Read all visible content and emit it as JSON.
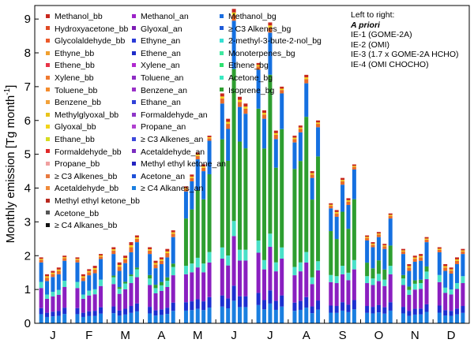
{
  "chart_data": {
    "type": "bar",
    "stacked": true,
    "ylabel": "Monthly emission [Tg month",
    "ylabel_sup": "-1",
    "ylabel_close": "]",
    "ylim": [
      0,
      9.4
    ],
    "yticks": [
      "0",
      "1",
      "2",
      "3",
      "4",
      "5",
      "6",
      "7",
      "8",
      "9"
    ],
    "months": [
      "J",
      "F",
      "M",
      "A",
      "M",
      "J",
      "J",
      "A",
      "S",
      "O",
      "N",
      "D"
    ],
    "bars_per_month": 5,
    "bar_order": [
      "A priori",
      "IE-1 (GOME-2A)",
      "IE-2 (OMI)",
      "IE-3 (1.7 x GOME-2A HCHO)",
      "IE-4 (OMI CHOCHO)"
    ],
    "notes": {
      "heading": "Left to right:",
      "lines": [
        "A priori",
        "IE-1 (GOME-2A)",
        "IE-2 (OMI)",
        "IE-3 (1.7 x GOME-2A HCHO)",
        "IE-4 (OMI CHOCHO)"
      ]
    },
    "stack_groups": [
      {
        "key": "C4 alkanes + acetone + ketone, anthropogenic",
        "color": "#1a7fe0"
      },
      {
        "key": "Propane + ethane + alkenes, anthropogenic",
        "color": "#1c2fd0"
      },
      {
        "key": "Aromatics + alcohols, anthropogenic",
        "color": "#8a1fc0"
      },
      {
        "key": "Biogenic carbonyls + monoterpenes",
        "color": "#49e0c8"
      },
      {
        "key": "Isoprene, biogenic",
        "color": "#2e9e30"
      },
      {
        "key": "Methanol, biogenic",
        "color": "#1570e0"
      },
      {
        "key": "Biomass burning",
        "color": "#e86a28"
      }
    ],
    "legend": [
      {
        "name": "Methanol_bb",
        "color": "#c8281e"
      },
      {
        "name": "Hydroxyacetone_bb",
        "color": "#e04a24"
      },
      {
        "name": "Glycolaldehyde_bb",
        "color": "#ec5a2a"
      },
      {
        "name": "Ethyne_bb",
        "color": "#f0a030"
      },
      {
        "name": "Ethene_bb",
        "color": "#e83448"
      },
      {
        "name": "Xylene_bb",
        "color": "#f07a30"
      },
      {
        "name": "Toluene_bb",
        "color": "#f58c2c"
      },
      {
        "name": "Benzene_bb",
        "color": "#f2a23a"
      },
      {
        "name": "Methylglyoxal_bb",
        "color": "#e8c41c"
      },
      {
        "name": "Glyoxal_bb",
        "color": "#f2d41a"
      },
      {
        "name": "Ethane_bb",
        "color": "#d6dc20"
      },
      {
        "name": "Formaldehyde_bb",
        "color": "#e02828"
      },
      {
        "name": "Propane_bb",
        "color": "#f0a0a0"
      },
      {
        "name": "≥ C3 Alkenes_bb",
        "color": "#e87a40"
      },
      {
        "name": "Acetaldehyde_bb",
        "color": "#f08a3a"
      },
      {
        "name": "Methyl ethyl ketone_bb",
        "color": "#b8281e"
      },
      {
        "name": "Acetone_bb",
        "color": "#555555"
      },
      {
        "name": "≥ C4 Alkanes_bb",
        "color": "#111111"
      },
      {
        "name": "Methanol_an",
        "color": "#9c22c8"
      },
      {
        "name": "Glyoxal_an",
        "color": "#7c1cb4"
      },
      {
        "name": "Ethyne_an",
        "color": "#2a3ad8"
      },
      {
        "name": "Ethene_an",
        "color": "#1e2cc8"
      },
      {
        "name": "Xylene_an",
        "color": "#b028d0"
      },
      {
        "name": "Toluene_an",
        "color": "#8e2cc4"
      },
      {
        "name": "Benzene_an",
        "color": "#9a30c8"
      },
      {
        "name": "Ethane_an",
        "color": "#3040d8"
      },
      {
        "name": "Formaldehyde_an",
        "color": "#8e36c8"
      },
      {
        "name": "Propane_an",
        "color": "#b040d0"
      },
      {
        "name": "≥ C3 Alkenes_an",
        "color": "#3c48dc"
      },
      {
        "name": "Acetaldehyde_an",
        "color": "#7a2cc0"
      },
      {
        "name": "Methyl ethyl ketone_an",
        "color": "#2424c0"
      },
      {
        "name": "Acetone_an",
        "color": "#1e50d8"
      },
      {
        "name": "≥ C4 Alkanes_an",
        "color": "#1a7fe0"
      },
      {
        "name": "Methanol_bg",
        "color": "#1a6ee0"
      },
      {
        "name": "≥ C3 Alkenes_bg",
        "color": "#1e5ad8"
      },
      {
        "name": "2-methyl-3-bute-2-nol_bg",
        "color": "#36e0d2"
      },
      {
        "name": "Monoterpenes_bg",
        "color": "#40e8a0"
      },
      {
        "name": "Ethene_bg",
        "color": "#2ee070"
      },
      {
        "name": "Acetone_bg",
        "color": "#3ae8c0"
      },
      {
        "name": "Isoprene_bg",
        "color": "#2e9e30"
      }
    ],
    "series": [
      {
        "name": "J",
        "totals": [
          1.95,
          1.45,
          1.55,
          1.65,
          2.0
        ],
        "bb": [
          0.15,
          0.2,
          0.18,
          0.2,
          0.15
        ],
        "iso": [
          0.0,
          0.0,
          0.0,
          0.0,
          0.0
        ]
      },
      {
        "name": "F",
        "totals": [
          1.95,
          1.45,
          1.6,
          1.7,
          2.05
        ],
        "bb": [
          0.15,
          0.2,
          0.18,
          0.22,
          0.15
        ],
        "iso": [
          0.0,
          0.0,
          0.0,
          0.0,
          0.0
        ]
      },
      {
        "name": "M",
        "totals": [
          2.25,
          1.8,
          2.0,
          2.4,
          2.6
        ],
        "bb": [
          0.2,
          0.25,
          0.22,
          0.3,
          0.2
        ],
        "iso": [
          0.05,
          0.05,
          0.05,
          0.05,
          0.05
        ]
      },
      {
        "name": "A",
        "totals": [
          2.25,
          1.85,
          1.95,
          2.2,
          2.75
        ],
        "bb": [
          0.2,
          0.22,
          0.2,
          0.25,
          0.2
        ],
        "iso": [
          0.1,
          0.1,
          0.1,
          0.1,
          0.1
        ]
      },
      {
        "name": "M",
        "totals": [
          4.05,
          4.4,
          5.05,
          4.7,
          5.55
        ],
        "bb": [
          0.15,
          0.2,
          0.2,
          0.2,
          0.15
        ],
        "iso": [
          1.4,
          1.6,
          2.0,
          1.9,
          2.3
        ]
      },
      {
        "name": "J",
        "totals": [
          6.8,
          6.05,
          9.3,
          6.7,
          6.5
        ],
        "bb": [
          0.3,
          0.3,
          0.35,
          0.3,
          0.3
        ],
        "iso": [
          3.2,
          2.8,
          4.5,
          3.2,
          3.0
        ]
      },
      {
        "name": "J",
        "totals": [
          7.7,
          6.3,
          8.9,
          5.7,
          7.0
        ],
        "bb": [
          0.2,
          0.25,
          0.3,
          0.25,
          0.2
        ],
        "iso": [
          3.9,
          3.3,
          4.7,
          2.8,
          3.5
        ]
      },
      {
        "name": "A",
        "totals": [
          5.55,
          5.85,
          7.35,
          4.5,
          6.0
        ],
        "bb": [
          0.2,
          0.2,
          0.25,
          0.2,
          0.2
        ],
        "iso": [
          2.9,
          3.0,
          4.0,
          2.3,
          3.1
        ]
      },
      {
        "name": "S",
        "totals": [
          3.55,
          3.35,
          4.3,
          3.7,
          4.7
        ],
        "bb": [
          0.15,
          0.2,
          0.2,
          0.2,
          0.15
        ],
        "iso": [
          1.3,
          1.1,
          1.6,
          1.3,
          1.8
        ]
      },
      {
        "name": "O",
        "totals": [
          2.6,
          2.4,
          2.7,
          2.35,
          3.25
        ],
        "bb": [
          0.15,
          0.15,
          0.15,
          0.15,
          0.15
        ],
        "iso": [
          0.4,
          0.3,
          0.4,
          0.3,
          0.6
        ]
      },
      {
        "name": "N",
        "totals": [
          2.2,
          1.75,
          2.0,
          2.05,
          2.55
        ],
        "bb": [
          0.15,
          0.2,
          0.18,
          0.2,
          0.15
        ],
        "iso": [
          0.1,
          0.1,
          0.1,
          0.1,
          0.15
        ]
      },
      {
        "name": "D",
        "totals": [
          2.25,
          1.75,
          1.65,
          1.95,
          2.2
        ],
        "bb": [
          0.15,
          0.2,
          0.18,
          0.2,
          0.15
        ],
        "iso": [
          0.0,
          0.0,
          0.0,
          0.0,
          0.0
        ]
      }
    ]
  }
}
